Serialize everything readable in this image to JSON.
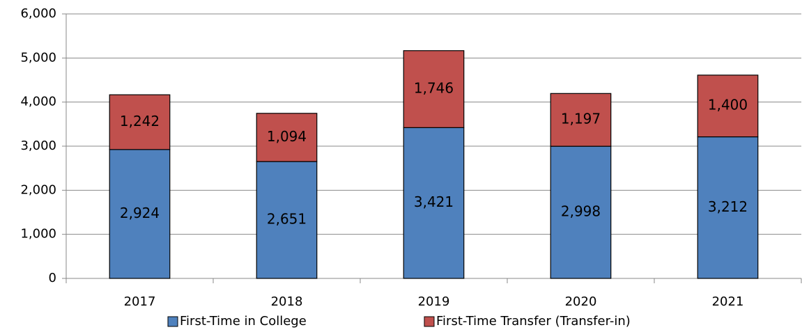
{
  "chart_data": {
    "type": "stacked_bar",
    "categories": [
      "2017",
      "2018",
      "2019",
      "2020",
      "2021"
    ],
    "series": [
      {
        "name": "First-Time in College",
        "color": "#4f81bd",
        "values": [
          2924,
          2651,
          3421,
          2998,
          3212
        ],
        "value_labels": [
          "2,924",
          "2,651",
          "3,421",
          "2,998",
          "3,212"
        ]
      },
      {
        "name": "First-Time Transfer (Transfer-in)",
        "color": "#c0504d",
        "values": [
          1242,
          1094,
          1746,
          1197,
          1400
        ],
        "value_labels": [
          "1,242",
          "1,094",
          "1,746",
          "1,197",
          "1,400"
        ]
      }
    ],
    "ylim": [
      0,
      6000
    ],
    "yticks": [
      0,
      {
        "value": 1000,
        "label": "1,000"
      },
      {
        "value": 2000,
        "label": "2,000"
      },
      {
        "value": 3000,
        "label": "3,000"
      },
      {
        "value": 4000,
        "label": "4,000"
      },
      {
        "value": 5000,
        "label": "5,000"
      },
      {
        "value": 6000,
        "label": "6,000"
      }
    ],
    "grid": true,
    "legend": "bottom"
  }
}
